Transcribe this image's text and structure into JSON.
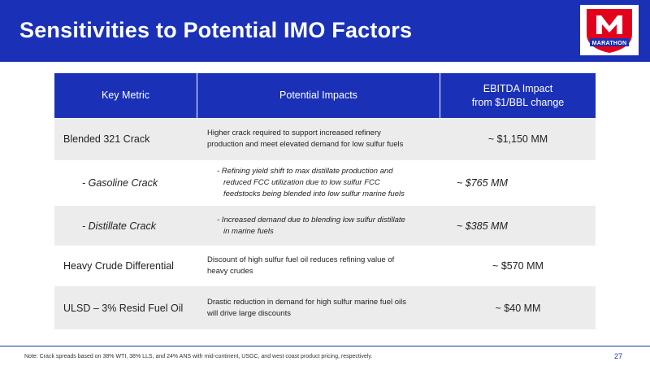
{
  "header": {
    "title": "Sensitivities to Potential IMO Factors",
    "logo_text": "MARATHON"
  },
  "table": {
    "columns": [
      "Key Metric",
      "Potential Impacts",
      [
        "EBITDA Impact",
        "from $1/BBL change"
      ]
    ],
    "rows": [
      {
        "metric": "Blended 321 Crack",
        "impact": [
          "Higher crack required to support increased refinery",
          "production and meet elevated demand for low sulfur fuels"
        ],
        "ebitda": "~ $1,150 MM"
      },
      {
        "metric": "- Gasoline Crack",
        "impact": [
          "- Refining yield shift to max distillate production and",
          "reduced FCC utilization due to low sulfur FCC",
          "feedstocks being blended into low sulfur marine fuels"
        ],
        "ebitda": "~ $765 MM"
      },
      {
        "metric": "- Distillate Crack",
        "impact": [
          "- Increased demand due to blending low sulfur distillate",
          "in marine fuels"
        ],
        "ebitda": "~ $385 MM"
      },
      {
        "metric": "Heavy Crude Differential",
        "impact": [
          "Discount of high sulfur fuel oil reduces refining value of",
          "heavy crudes"
        ],
        "ebitda": "~ $570 MM"
      },
      {
        "metric": "ULSD – 3% Resid Fuel Oil",
        "impact": [
          "Drastic reduction in demand for high sulfur marine fuel oils",
          "will drive large discounts"
        ],
        "ebitda": "~ $40 MM"
      }
    ]
  },
  "footer": {
    "note": "Note: Crack spreads based on 38% WTI, 38% LLS, and 24% ANS with mid-continent, USGC, and west coast product pricing, respectively.",
    "page": "27"
  },
  "colors": {
    "brand_blue": "#1a31b7",
    "brand_red": "#e3001b",
    "row_shade": "#ececec"
  }
}
